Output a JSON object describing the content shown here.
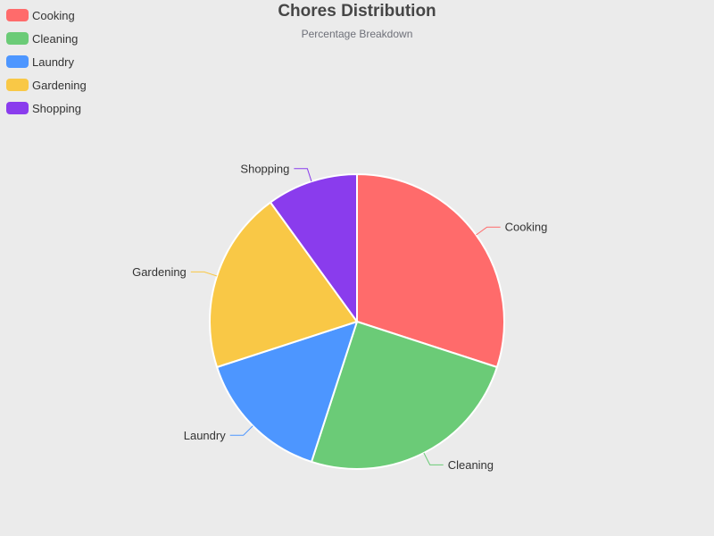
{
  "chart_data": {
    "type": "pie",
    "title": "Chores Distribution",
    "subtitle": "Percentage Breakdown",
    "legend_position": "top-left",
    "categories": [
      "Cooking",
      "Cleaning",
      "Laundry",
      "Gardening",
      "Shopping"
    ],
    "values": [
      30,
      25,
      15,
      20,
      10
    ],
    "colors": [
      "#ff6b6b",
      "#6bcb77",
      "#4d96ff",
      "#f9c846",
      "#8a3ced"
    ]
  }
}
